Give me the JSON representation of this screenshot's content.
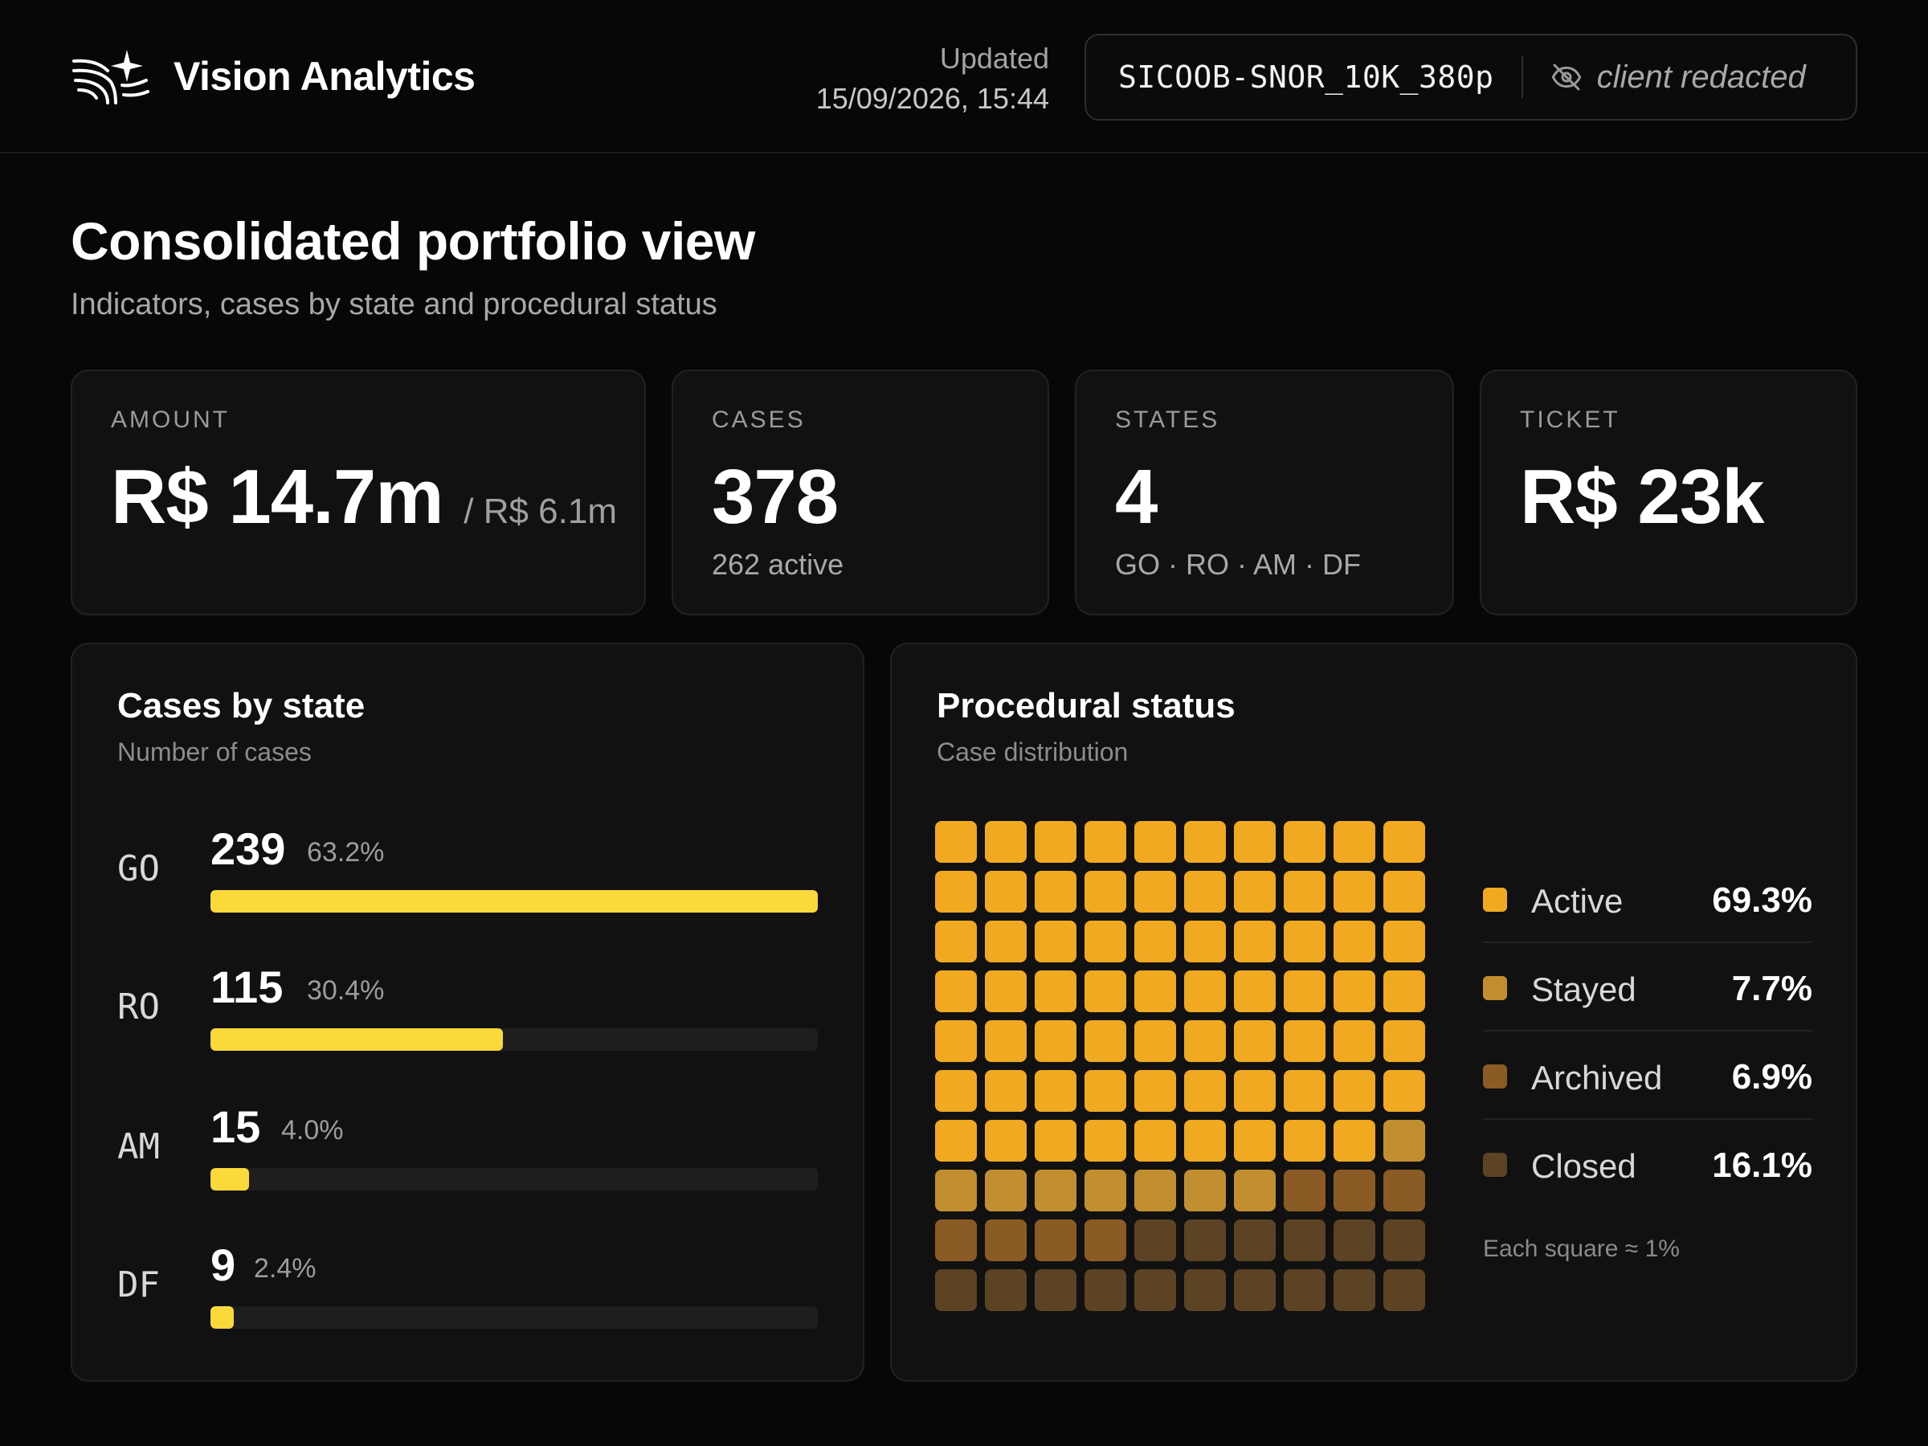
{
  "app": {
    "name": "Vision Analytics",
    "logo_icon": "sparkle-swoosh-logo"
  },
  "header": {
    "updated_label": "Updated",
    "updated_time": "15/09/2026, 15:44",
    "dataset_code": "SICOOB-SNOR_10K_380p",
    "client_label": "client redacted",
    "client_icon": "eye-off-icon"
  },
  "page": {
    "title": "Consolidated portfolio view",
    "subtitle": "Indicators, cases by state and procedural status"
  },
  "kpis": {
    "amount": {
      "label": "AMOUNT",
      "value": "R$ 14.7m",
      "secondary": "/ R$ 6.1m"
    },
    "cases": {
      "label": "CASES",
      "value": "378",
      "note": "262 active"
    },
    "states": {
      "label": "STATES",
      "value": "4",
      "note": "GO · RO · AM · DF"
    },
    "ticket": {
      "label": "TICKET",
      "value": "R$ 23k"
    }
  },
  "cases_by_state": {
    "title": "Cases by state",
    "subtitle": "Number of cases",
    "bar_color": "#fcd93b",
    "rows": [
      {
        "state": "GO",
        "count": "239",
        "pct": "63.2%",
        "fill": 1.0
      },
      {
        "state": "RO",
        "count": "115",
        "pct": "30.4%",
        "fill": 0.481
      },
      {
        "state": "AM",
        "count": "15",
        "pct": "4.0%",
        "fill": 0.063
      },
      {
        "state": "DF",
        "count": "9",
        "pct": "2.4%",
        "fill": 0.038
      }
    ]
  },
  "procedural_status": {
    "title": "Procedural status",
    "subtitle": "Case distribution",
    "note": "Each square ≈ 1%",
    "categories": [
      {
        "name": "Active",
        "pct": "69.3%",
        "squares": 69,
        "color": "#f0a921"
      },
      {
        "name": "Stayed",
        "pct": "7.7%",
        "squares": 8,
        "color": "#c28f30"
      },
      {
        "name": "Archived",
        "pct": "6.9%",
        "squares": 7,
        "color": "#8b5b25"
      },
      {
        "name": "Closed",
        "pct": "16.1%",
        "squares": 16,
        "color": "#5c4324"
      }
    ]
  }
}
